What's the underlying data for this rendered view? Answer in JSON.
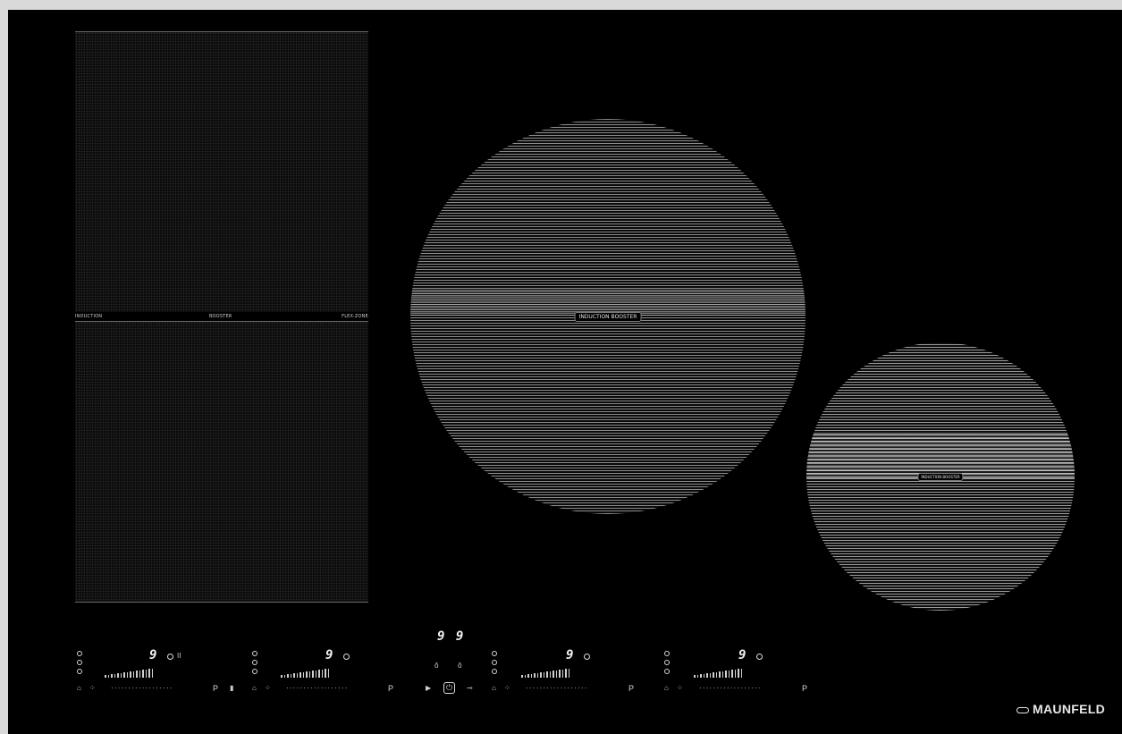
{
  "zones": {
    "flex": {
      "label_left": "INDUCTION",
      "label_center": "BOOSTER",
      "label_right": "FLEX-ZONE"
    },
    "large": {
      "label": "INDUCTION BOOSTER"
    },
    "small": {
      "label": "INDUCTION BOOSTER"
    }
  },
  "controls": {
    "zone1": {
      "display": "9",
      "pause": "II"
    },
    "zone2": {
      "display": "9"
    },
    "timer": {
      "display": "9 9"
    },
    "zone3": {
      "display": "9"
    },
    "zone4": {
      "display": "9"
    },
    "power_label": "P",
    "power_key": "⏻"
  },
  "brand": {
    "name": "MAUNFELD"
  },
  "colors": {
    "glass": "#000000",
    "frame": "#d9d9d9",
    "print": "#d8d8d8"
  }
}
